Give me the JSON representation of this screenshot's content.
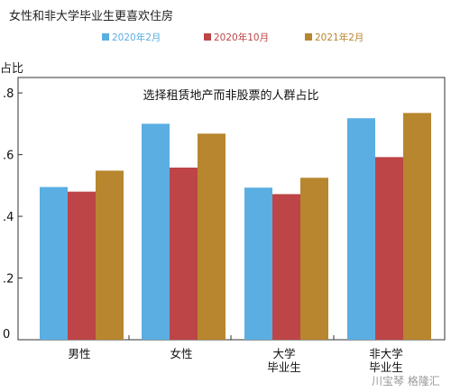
{
  "chart_data": {
    "type": "bar",
    "title": "女性和非大学毕业生更喜欢住房",
    "subtitle": "选择租赁地产而非股票的人群占比",
    "ylabel": "占比",
    "xlabel": "",
    "ylim": [
      0,
      0.85
    ],
    "yticks": [
      0,
      0.2,
      0.4,
      0.6,
      0.8
    ],
    "ytick_labels": [
      "0",
      ".2",
      ".4",
      ".6",
      ".8"
    ],
    "grid": false,
    "legend_position": "top",
    "categories": [
      [
        "男性"
      ],
      [
        "女性"
      ],
      [
        "大学",
        "毕业生"
      ],
      [
        "非大学",
        "毕业生"
      ]
    ],
    "series": [
      {
        "name": "2020年2月",
        "color": "#5aaee2",
        "values": [
          0.495,
          0.7,
          0.493,
          0.718
        ]
      },
      {
        "name": "2020年10月",
        "color": "#bd4547",
        "values": [
          0.48,
          0.558,
          0.472,
          0.592
        ]
      },
      {
        "name": "2021年2月",
        "color": "#b7862e",
        "values": [
          0.548,
          0.668,
          0.525,
          0.735
        ]
      }
    ]
  },
  "watermark": "川宝琴 格隆汇"
}
